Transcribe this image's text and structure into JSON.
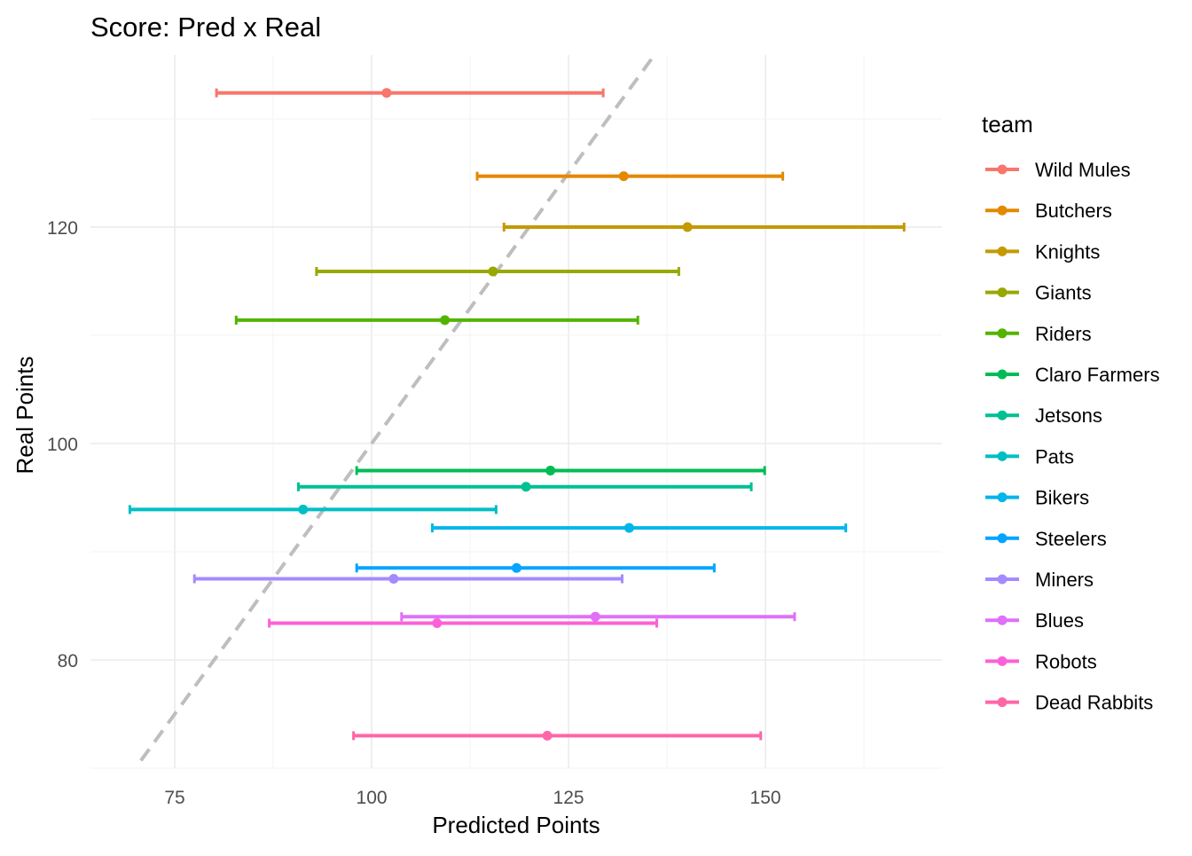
{
  "chart_data": {
    "type": "scatter",
    "title": "Score: Pred x Real",
    "xlabel": "Predicted Points",
    "ylabel": "Real Points",
    "xlim": [
      64.3,
      172.4
    ],
    "ylim": [
      70,
      135.9
    ],
    "x_ticks": [
      75,
      100,
      125,
      150
    ],
    "y_ticks": [
      80,
      100,
      120
    ],
    "grid": true,
    "reference_line": {
      "slope": 1,
      "intercept": 0,
      "style": "dashed",
      "color": "#BEBEBE"
    },
    "legend": {
      "title": "team",
      "placement": "right"
    },
    "series": [
      {
        "name": "Wild Mules",
        "color": "#F8766D",
        "pred": 101.9,
        "real": 132.4,
        "lo": 80.3,
        "hi": 129.4
      },
      {
        "name": "Butchers",
        "color": "#E38900",
        "pred": 132.0,
        "real": 124.7,
        "lo": 113.4,
        "hi": 152.2
      },
      {
        "name": "Knights",
        "color": "#C49A00",
        "pred": 140.1,
        "real": 120.0,
        "lo": 116.8,
        "hi": 167.6
      },
      {
        "name": "Giants",
        "color": "#99A800",
        "pred": 115.4,
        "real": 115.9,
        "lo": 93.0,
        "hi": 139.0
      },
      {
        "name": "Riders",
        "color": "#53B400",
        "pred": 109.3,
        "real": 111.4,
        "lo": 82.8,
        "hi": 133.8
      },
      {
        "name": "Claro Farmers",
        "color": "#00BC56",
        "pred": 122.7,
        "real": 97.5,
        "lo": 98.1,
        "hi": 149.9
      },
      {
        "name": "Jetsons",
        "color": "#00C094",
        "pred": 119.6,
        "real": 96.0,
        "lo": 90.7,
        "hi": 148.2
      },
      {
        "name": "Pats",
        "color": "#00BFC4",
        "pred": 91.3,
        "real": 93.9,
        "lo": 69.3,
        "hi": 115.8
      },
      {
        "name": "Bikers",
        "color": "#00B6EB",
        "pred": 132.7,
        "real": 92.2,
        "lo": 107.7,
        "hi": 160.2
      },
      {
        "name": "Steelers",
        "color": "#06A4FF",
        "pred": 118.4,
        "real": 88.5,
        "lo": 98.1,
        "hi": 143.5
      },
      {
        "name": "Miners",
        "color": "#A58AFF",
        "pred": 102.8,
        "real": 87.5,
        "lo": 77.5,
        "hi": 131.8
      },
      {
        "name": "Blues",
        "color": "#DF70F8",
        "pred": 128.4,
        "real": 84.0,
        "lo": 103.8,
        "hi": 153.7
      },
      {
        "name": "Robots",
        "color": "#FB61D7",
        "pred": 108.3,
        "real": 83.4,
        "lo": 87.0,
        "hi": 136.2
      },
      {
        "name": "Dead Rabbits",
        "color": "#FF66A8",
        "pred": 122.3,
        "real": 73.0,
        "lo": 97.7,
        "hi": 149.4
      }
    ]
  }
}
